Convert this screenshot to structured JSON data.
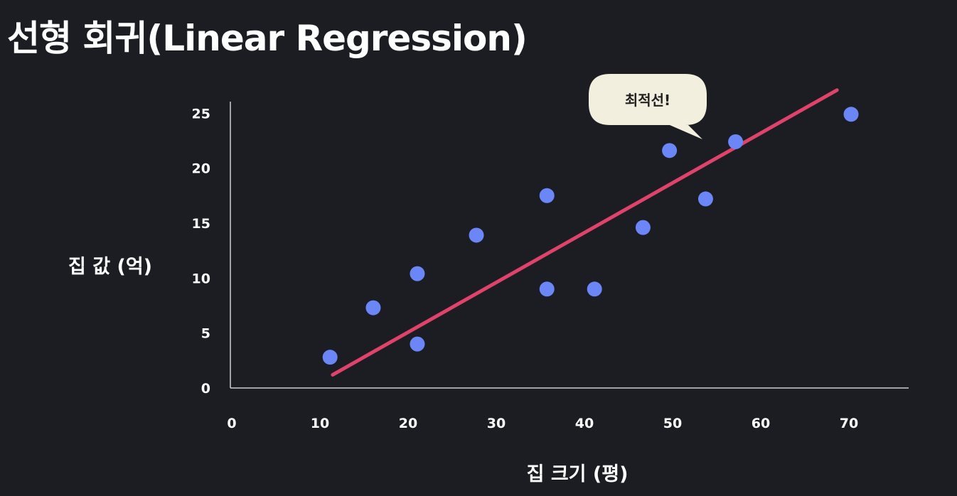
{
  "title": "선형 회귀(Linear Regression)",
  "chart_data": {
    "type": "scatter",
    "title": "선형 회귀(Linear Regression)",
    "xlabel": "집 크기 (평)",
    "ylabel": "집 값 (억)",
    "xlim": [
      0,
      77
    ],
    "ylim": [
      0,
      26
    ],
    "x_ticks": [
      0,
      10,
      20,
      30,
      40,
      50,
      60,
      70
    ],
    "y_ticks": [
      0,
      5,
      10,
      15,
      20,
      25
    ],
    "grid": false,
    "points": [
      {
        "x": 10.5,
        "y": 2.8
      },
      {
        "x": 15.4,
        "y": 7.3
      },
      {
        "x": 20.4,
        "y": 10.4
      },
      {
        "x": 20.4,
        "y": 4.0
      },
      {
        "x": 27.1,
        "y": 13.9
      },
      {
        "x": 35.1,
        "y": 17.5
      },
      {
        "x": 35.1,
        "y": 9.0
      },
      {
        "x": 40.5,
        "y": 9.0
      },
      {
        "x": 46.0,
        "y": 14.6
      },
      {
        "x": 49.0,
        "y": 21.6
      },
      {
        "x": 53.1,
        "y": 17.2
      },
      {
        "x": 56.5,
        "y": 22.4
      },
      {
        "x": 69.6,
        "y": 24.9
      }
    ],
    "fit_line": {
      "x": [
        10.8,
        68.0
      ],
      "y": [
        1.2,
        27.1
      ]
    },
    "annotation": "최적선!",
    "colors": {
      "points": "#6b86f7",
      "line": "#e0436a",
      "axis": "#cfcfcf",
      "callout": "#f2efde"
    }
  }
}
